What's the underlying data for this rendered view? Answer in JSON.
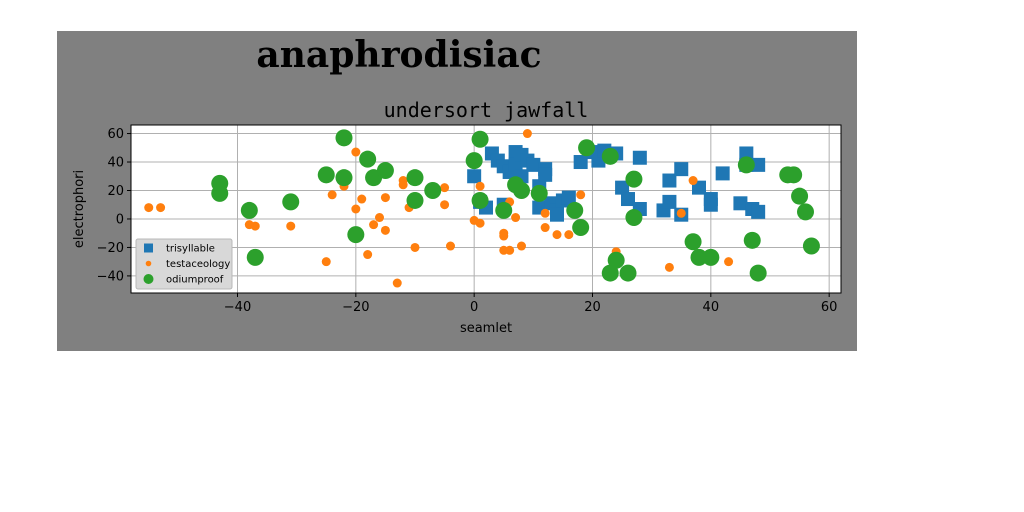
{
  "page": {
    "suptitle": "anaphrodisiac"
  },
  "chart_data": {
    "type": "scatter",
    "title": "undersort jawfall",
    "xlabel": "seamlet",
    "ylabel": "electrophori",
    "xlim": [
      -58,
      62
    ],
    "ylim": [
      -52,
      66
    ],
    "xticks": [
      -40,
      -20,
      0,
      20,
      40,
      60
    ],
    "yticks": [
      -40,
      -20,
      0,
      20,
      40,
      60
    ],
    "grid": true,
    "legend_position": "lower-left",
    "colors": {
      "figure_background": "#808080",
      "axes_background": "#ffffff",
      "grid": "#b0b0b0"
    },
    "series": [
      {
        "name": "trisyllable",
        "marker": "square",
        "color": "#1f77b4",
        "points": [
          [
            0,
            30
          ],
          [
            1,
            12
          ],
          [
            2,
            8
          ],
          [
            3,
            46
          ],
          [
            4,
            41
          ],
          [
            5,
            37
          ],
          [
            5,
            10
          ],
          [
            6,
            33
          ],
          [
            7,
            47
          ],
          [
            7,
            38
          ],
          [
            8,
            45
          ],
          [
            8,
            30
          ],
          [
            9,
            41
          ],
          [
            10,
            38
          ],
          [
            11,
            23
          ],
          [
            11,
            8
          ],
          [
            12,
            35
          ],
          [
            12,
            31
          ],
          [
            13,
            11
          ],
          [
            14,
            6
          ],
          [
            14,
            3
          ],
          [
            15,
            13
          ],
          [
            16,
            15
          ],
          [
            18,
            40
          ],
          [
            20,
            47
          ],
          [
            21,
            41
          ],
          [
            22,
            48
          ],
          [
            24,
            46
          ],
          [
            25,
            22
          ],
          [
            26,
            14
          ],
          [
            28,
            43
          ],
          [
            28,
            7
          ],
          [
            32,
            6
          ],
          [
            33,
            12
          ],
          [
            33,
            27
          ],
          [
            35,
            35
          ],
          [
            35,
            3
          ],
          [
            38,
            22
          ],
          [
            40,
            14
          ],
          [
            40,
            10
          ],
          [
            42,
            32
          ],
          [
            45,
            11
          ],
          [
            46,
            46
          ],
          [
            46,
            38
          ],
          [
            47,
            7
          ],
          [
            48,
            5
          ],
          [
            48,
            38
          ]
        ]
      },
      {
        "name": "testaceology",
        "marker": "circle-small",
        "color": "#ff7f0e",
        "points": [
          [
            -53,
            8
          ],
          [
            -37,
            -5
          ],
          [
            -38,
            -4
          ],
          [
            -31,
            -5
          ],
          [
            -25,
            -30
          ],
          [
            -24,
            17
          ],
          [
            -22,
            23
          ],
          [
            -20,
            47
          ],
          [
            -20,
            7
          ],
          [
            -19,
            14
          ],
          [
            -18,
            -25
          ],
          [
            -17,
            -4
          ],
          [
            -16,
            1
          ],
          [
            -15,
            15
          ],
          [
            -15,
            -8
          ],
          [
            -13,
            -45
          ],
          [
            -12,
            27
          ],
          [
            -12,
            24
          ],
          [
            -11,
            8
          ],
          [
            -10,
            -20
          ],
          [
            -5,
            22
          ],
          [
            -4,
            -19
          ],
          [
            -5,
            10
          ],
          [
            0,
            -1
          ],
          [
            1,
            -3
          ],
          [
            1,
            23
          ],
          [
            5,
            -10
          ],
          [
            5,
            -12
          ],
          [
            5,
            -22
          ],
          [
            6,
            -22
          ],
          [
            6,
            12
          ],
          [
            7,
            1
          ],
          [
            8,
            -19
          ],
          [
            9,
            60
          ],
          [
            12,
            -6
          ],
          [
            12,
            4
          ],
          [
            14,
            -11
          ],
          [
            16,
            -11
          ],
          [
            18,
            17
          ],
          [
            24,
            -23
          ],
          [
            33,
            -34
          ],
          [
            35,
            4
          ],
          [
            37,
            27
          ],
          [
            43,
            -30
          ],
          [
            -55,
            8
          ]
        ]
      },
      {
        "name": "odiumproof",
        "marker": "circle-large",
        "color": "#2ca02c",
        "points": [
          [
            -43,
            25
          ],
          [
            -43,
            18
          ],
          [
            -38,
            6
          ],
          [
            -37,
            -27
          ],
          [
            -31,
            12
          ],
          [
            -25,
            31
          ],
          [
            -22,
            57
          ],
          [
            -22,
            29
          ],
          [
            -20,
            -11
          ],
          [
            -18,
            42
          ],
          [
            -17,
            29
          ],
          [
            -15,
            34
          ],
          [
            -10,
            13
          ],
          [
            -10,
            29
          ],
          [
            -7,
            20
          ],
          [
            0,
            41
          ],
          [
            1,
            56
          ],
          [
            1,
            13
          ],
          [
            5,
            6
          ],
          [
            7,
            24
          ],
          [
            8,
            20
          ],
          [
            11,
            18
          ],
          [
            17,
            6
          ],
          [
            18,
            -6
          ],
          [
            19,
            50
          ],
          [
            23,
            -38
          ],
          [
            23,
            44
          ],
          [
            24,
            -29
          ],
          [
            26,
            -38
          ],
          [
            27,
            28
          ],
          [
            27,
            1
          ],
          [
            37,
            -16
          ],
          [
            38,
            -27
          ],
          [
            40,
            -27
          ],
          [
            46,
            38
          ],
          [
            47,
            -15
          ],
          [
            48,
            -38
          ],
          [
            53,
            31
          ],
          [
            54,
            31
          ],
          [
            55,
            16
          ],
          [
            56,
            5
          ],
          [
            57,
            -19
          ]
        ]
      }
    ]
  }
}
